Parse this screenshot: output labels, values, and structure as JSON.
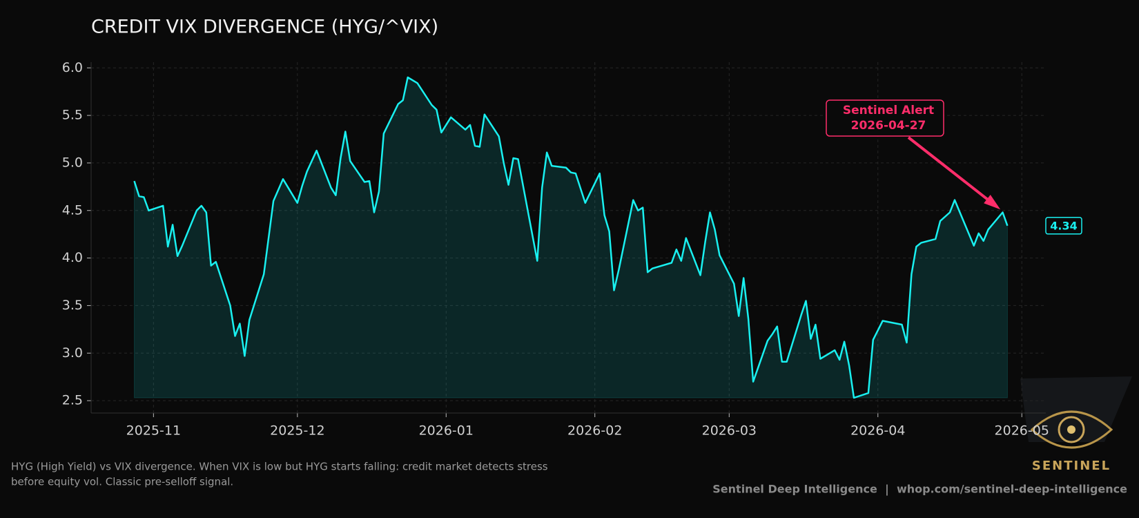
{
  "chart_data": {
    "type": "line",
    "title": "CREDIT VIX DIVERGENCE (HYG/^VIX)",
    "color": "#19f0f0",
    "x": [
      "2025-10-28",
      "2025-10-29",
      "2025-10-30",
      "2025-10-31",
      "2025-11-03",
      "2025-11-04",
      "2025-11-05",
      "2025-11-06",
      "2025-11-07",
      "2025-11-10",
      "2025-11-11",
      "2025-11-12",
      "2025-11-13",
      "2025-11-14",
      "2025-11-17",
      "2025-11-18",
      "2025-11-19",
      "2025-11-20",
      "2025-11-21",
      "2025-11-24",
      "2025-11-26",
      "2025-11-28",
      "2025-12-01",
      "2025-12-02",
      "2025-12-03",
      "2025-12-05",
      "2025-12-08",
      "2025-12-09",
      "2025-12-10",
      "2025-12-11",
      "2025-12-12",
      "2025-12-15",
      "2025-12-16",
      "2025-12-17",
      "2025-12-18",
      "2025-12-19",
      "2025-12-22",
      "2025-12-23",
      "2025-12-24",
      "2025-12-26",
      "2025-12-29",
      "2025-12-30",
      "2025-12-31",
      "2026-01-02",
      "2026-01-05",
      "2026-01-06",
      "2026-01-07",
      "2026-01-08",
      "2026-01-09",
      "2026-01-12",
      "2026-01-13",
      "2026-01-14",
      "2026-01-15",
      "2026-01-16",
      "2026-01-20",
      "2026-01-21",
      "2026-01-22",
      "2026-01-23",
      "2026-01-26",
      "2026-01-27",
      "2026-01-28",
      "2026-01-30",
      "2026-02-02",
      "2026-02-03",
      "2026-02-04",
      "2026-02-05",
      "2026-02-06",
      "2026-02-09",
      "2026-02-10",
      "2026-02-11",
      "2026-02-12",
      "2026-02-13",
      "2026-02-17",
      "2026-02-18",
      "2026-02-19",
      "2026-02-20",
      "2026-02-23",
      "2026-02-24",
      "2026-02-25",
      "2026-02-26",
      "2026-02-27",
      "2026-03-02",
      "2026-03-03",
      "2026-03-04",
      "2026-03-05",
      "2026-03-06",
      "2026-03-09",
      "2026-03-10",
      "2026-03-11",
      "2026-03-12",
      "2026-03-13",
      "2026-03-16",
      "2026-03-17",
      "2026-03-18",
      "2026-03-19",
      "2026-03-20",
      "2026-03-23",
      "2026-03-24",
      "2026-03-25",
      "2026-03-26",
      "2026-03-27",
      "2026-03-30",
      "2026-03-31",
      "2026-04-02",
      "2026-04-06",
      "2026-04-07",
      "2026-04-08",
      "2026-04-09",
      "2026-04-10",
      "2026-04-13",
      "2026-04-14",
      "2026-04-16",
      "2026-04-17",
      "2026-04-20",
      "2026-04-21",
      "2026-04-22",
      "2026-04-23",
      "2026-04-24",
      "2026-04-27",
      "2026-04-28"
    ],
    "values": [
      4.81,
      4.65,
      4.64,
      4.5,
      4.55,
      4.12,
      4.35,
      4.02,
      4.13,
      4.5,
      4.55,
      4.48,
      3.92,
      3.96,
      3.5,
      3.18,
      3.31,
      2.97,
      3.35,
      3.83,
      4.6,
      4.83,
      4.58,
      4.76,
      4.91,
      5.13,
      4.74,
      4.66,
      5.05,
      5.33,
      5.02,
      4.8,
      4.81,
      4.48,
      4.7,
      5.31,
      5.62,
      5.66,
      5.9,
      5.84,
      5.61,
      5.56,
      5.32,
      5.48,
      5.35,
      5.4,
      5.18,
      5.17,
      5.51,
      5.28,
      5.0,
      4.77,
      5.05,
      5.04,
      3.97,
      4.74,
      5.11,
      4.97,
      4.95,
      4.9,
      4.89,
      4.58,
      4.89,
      4.45,
      4.28,
      3.66,
      3.88,
      4.61,
      4.5,
      4.53,
      3.85,
      3.89,
      3.95,
      4.09,
      3.97,
      4.21,
      3.82,
      4.17,
      4.48,
      4.3,
      4.03,
      3.73,
      3.39,
      3.79,
      3.36,
      2.7,
      3.13,
      3.2,
      3.28,
      2.91,
      2.91,
      3.4,
      3.55,
      3.15,
      3.3,
      2.94,
      3.03,
      2.93,
      3.12,
      2.87,
      2.53,
      2.58,
      3.14,
      3.34,
      3.3,
      3.11,
      3.83,
      4.12,
      4.16,
      4.2,
      4.39,
      4.48,
      4.61,
      4.25,
      4.13,
      4.26,
      4.18,
      4.3,
      4.48,
      4.34
    ],
    "xlim": [
      "2025-10-19",
      "2026-05-06"
    ],
    "xticks": [
      {
        "value": "2025-11-01",
        "label": "2025-11"
      },
      {
        "value": "2025-12-01",
        "label": "2025-12"
      },
      {
        "value": "2026-01-01",
        "label": "2026-01"
      },
      {
        "value": "2026-02-01",
        "label": "2026-02"
      },
      {
        "value": "2026-03-01",
        "label": "2026-03"
      },
      {
        "value": "2026-04-01",
        "label": "2026-04"
      },
      {
        "value": "2026-05-01",
        "label": "2026-05"
      }
    ],
    "ylim": [
      2.37,
      6.06
    ],
    "yticks": [
      {
        "value": 2.5,
        "label": "2.5"
      },
      {
        "value": 3,
        "label": "3.0"
      },
      {
        "value": 3.5,
        "label": "3.5"
      },
      {
        "value": 4,
        "label": "4.0"
      },
      {
        "value": 4.5,
        "label": "4.5"
      },
      {
        "value": 5,
        "label": "5.0"
      },
      {
        "value": 5.5,
        "label": "5.5"
      },
      {
        "value": 6,
        "label": "6.0"
      }
    ],
    "grid": true,
    "alert_label": "Sentinel Alert",
    "alert_date": "2026-04-27",
    "last_label": "4.34",
    "footnote": [
      "HYG (High Yield) vs VIX divergence. When VIX is low but HYG starts falling: credit market detects stress",
      "before equity vol. Classic pre-selloff signal."
    ],
    "credit": "Sentinel Deep Intelligence  |  whop.com/sentinel-deep-intelligence",
    "logo_text": "SENTINEL"
  }
}
